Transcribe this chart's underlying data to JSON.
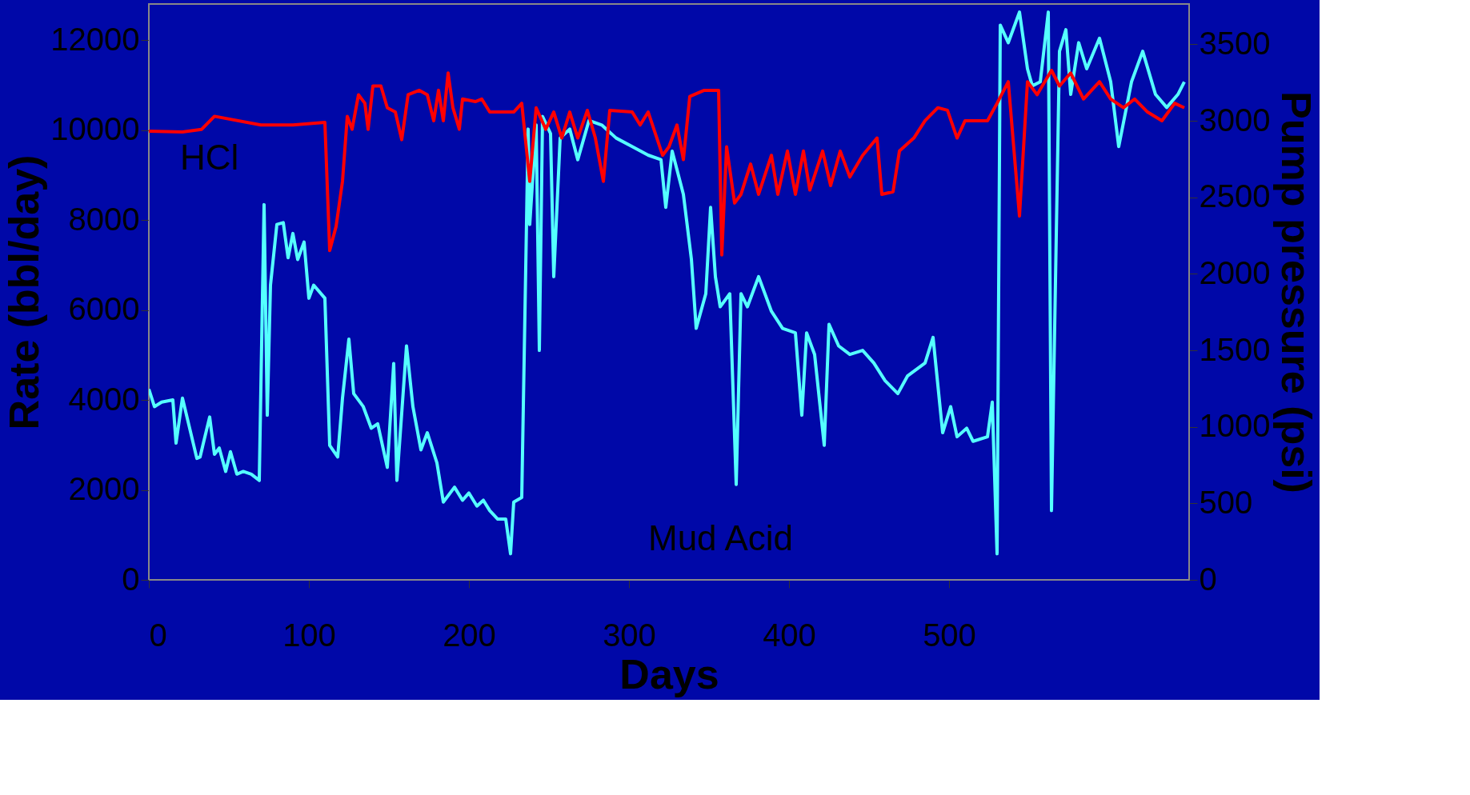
{
  "chart_data": {
    "type": "line",
    "xlabel": "Days",
    "ylabel": "Rate (bbl/day)",
    "y2label": "Pump pressure (psi)",
    "xlim": [
      0,
      650
    ],
    "xticks": [
      0,
      100,
      200,
      300,
      400,
      500
    ],
    "ylim": [
      0,
      12800
    ],
    "yticks": [
      0,
      2000,
      4000,
      6000,
      8000,
      10000,
      12000
    ],
    "y2lim": [
      0,
      3764
    ],
    "y2ticks": [
      0,
      500,
      1000,
      1500,
      2000,
      2500,
      3000,
      3500
    ],
    "grid": false,
    "annotations": [
      "HCl",
      "Mud Acid"
    ],
    "series": [
      {
        "color": "#55ffff",
        "x": [
          0,
          3.5,
          8,
          15,
          17,
          21,
          30,
          32,
          38,
          41,
          44,
          48,
          51,
          55,
          59,
          64,
          69,
          72,
          74,
          76,
          80,
          84,
          87,
          90,
          93,
          97,
          100,
          103,
          110,
          113,
          118,
          121,
          125,
          128,
          134,
          139,
          143,
          149,
          153,
          155,
          161,
          165,
          170,
          174,
          180,
          184,
          191,
          196,
          200,
          205,
          209,
          213,
          218,
          223,
          226,
          228,
          233,
          237,
          238,
          242,
          244,
          246,
          251,
          253,
          257,
          263,
          268,
          275,
          283,
          292,
          302,
          312,
          320,
          323,
          327,
          334,
          339,
          342,
          348,
          351,
          354,
          357,
          363,
          367,
          370,
          374,
          381,
          389,
          396,
          404,
          408,
          411,
          416,
          422,
          425,
          431,
          438,
          446,
          453,
          460,
          468,
          474,
          485,
          490,
          496,
          501,
          505,
          511,
          515,
          524,
          527,
          530,
          532,
          537,
          544,
          549,
          552,
          557,
          562,
          564,
          569,
          573,
          576,
          581,
          586,
          594,
          601,
          606,
          614,
          621,
          629,
          636,
          643,
          647
        ],
        "values": [
          4240,
          3850,
          3950,
          4000,
          3040,
          4040,
          2700,
          2730,
          3620,
          2790,
          2930,
          2410,
          2850,
          2350,
          2410,
          2350,
          2210,
          8340,
          3660,
          6550,
          7900,
          7940,
          7160,
          7700,
          7120,
          7510,
          6260,
          6550,
          6260,
          2990,
          2730,
          4040,
          5350,
          4140,
          3850,
          3370,
          3470,
          2500,
          4810,
          2210,
          5200,
          3850,
          2890,
          3270,
          2600,
          1730,
          2060,
          1770,
          1930,
          1640,
          1770,
          1540,
          1350,
          1350,
          580,
          1730,
          1830,
          10020,
          7900,
          10110,
          5100,
          10300,
          9920,
          6740,
          9820,
          10020,
          9340,
          10210,
          10110,
          9820,
          9630,
          9440,
          9340,
          8280,
          9530,
          8570,
          7130,
          5590,
          6360,
          8280,
          6740,
          6070,
          6360,
          2120,
          6360,
          6070,
          6740,
          5970,
          5590,
          5490,
          3660,
          5490,
          5010,
          2990,
          5680,
          5200,
          5010,
          5100,
          4820,
          4430,
          4140,
          4530,
          4820,
          5390,
          3270,
          3850,
          3180,
          3370,
          3080,
          3180,
          3950,
          580,
          12330,
          11940,
          12620,
          11360,
          10980,
          11070,
          12620,
          1540,
          11750,
          12230,
          10790,
          11940,
          11360,
          12040,
          11070,
          9630,
          11070,
          11750,
          10790,
          10500,
          10790,
          11070
        ]
      },
      {
        "color": "#ff0000",
        "axis": "y2",
        "x": [
          0,
          21,
          33,
          41,
          70,
          90,
          110,
          113,
          117,
          121,
          124,
          127,
          131,
          135,
          137,
          140,
          145,
          149,
          154,
          158,
          162,
          169,
          174,
          178,
          181,
          184,
          187,
          190,
          194,
          196,
          204,
          208,
          213,
          228,
          233,
          238,
          242,
          248,
          253,
          258,
          263,
          268,
          274,
          279,
          284,
          288,
          302,
          307,
          312,
          321,
          325,
          330,
          334,
          338,
          347,
          356,
          358,
          361,
          366,
          370,
          376,
          381,
          389,
          393,
          399,
          404,
          409,
          413,
          421,
          426,
          432,
          438,
          446,
          455,
          458,
          465,
          469,
          478,
          485,
          493,
          499,
          505,
          510,
          524,
          530,
          537,
          544,
          549,
          555,
          564,
          569,
          576,
          584,
          594,
          601,
          609,
          616,
          624,
          633,
          641,
          647
        ],
        "values": [
          2933,
          2928,
          2945,
          3030,
          2973,
          2973,
          2990,
          2152,
          2310,
          2605,
          3030,
          2945,
          3171,
          3115,
          2945,
          3228,
          3228,
          3086,
          3058,
          2877,
          3171,
          3200,
          3171,
          3001,
          3200,
          3001,
          3313,
          3086,
          2945,
          3143,
          3126,
          3143,
          3058,
          3058,
          3115,
          2605,
          3086,
          2945,
          3058,
          2888,
          3058,
          2888,
          3069,
          2888,
          2605,
          3069,
          3058,
          2973,
          3058,
          2775,
          2831,
          2973,
          2747,
          3160,
          3200,
          3200,
          2124,
          2831,
          2463,
          2520,
          2718,
          2520,
          2775,
          2520,
          2803,
          2520,
          2803,
          2548,
          2803,
          2577,
          2803,
          2633,
          2775,
          2888,
          2520,
          2537,
          2803,
          2888,
          3001,
          3086,
          3069,
          2888,
          3001,
          3001,
          3115,
          3256,
          2378,
          3256,
          3171,
          3330,
          3228,
          3313,
          3143,
          3256,
          3143,
          3086,
          3143,
          3058,
          3001,
          3115,
          3086
        ]
      }
    ]
  }
}
